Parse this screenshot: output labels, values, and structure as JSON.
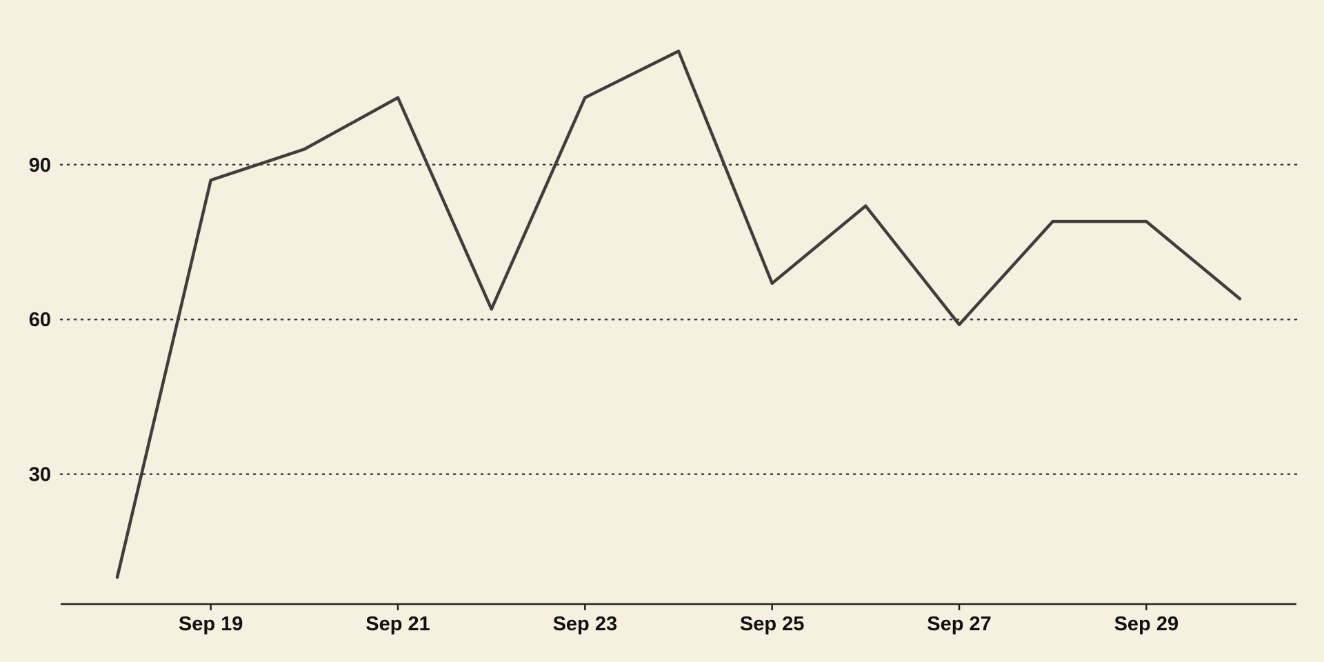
{
  "chart_data": {
    "type": "line",
    "title": "",
    "xlabel": "",
    "ylabel": "",
    "x": [
      "2024-09-18",
      "2024-09-19",
      "2024-09-20",
      "2024-09-21",
      "2024-09-22",
      "2024-09-23",
      "2024-09-24",
      "2024-09-25",
      "2024-09-26",
      "2024-09-27",
      "2024-09-28",
      "2024-09-29",
      "2024-09-30"
    ],
    "series": [
      {
        "values": [
          10,
          87,
          93,
          103,
          62,
          103,
          112,
          67,
          82,
          59,
          79,
          79,
          64
        ]
      }
    ],
    "x_ticks": [
      {
        "date": "2024-09-19",
        "label": "Sep 19"
      },
      {
        "date": "2024-09-21",
        "label": "Sep 21"
      },
      {
        "date": "2024-09-23",
        "label": "Sep 23"
      },
      {
        "date": "2024-09-25",
        "label": "Sep 25"
      },
      {
        "date": "2024-09-27",
        "label": "Sep 27"
      },
      {
        "date": "2024-09-29",
        "label": "Sep 29"
      }
    ],
    "y_ticks": [
      {
        "value": 30,
        "label": "30"
      },
      {
        "value": 60,
        "label": "60"
      },
      {
        "value": 90,
        "label": "90"
      }
    ],
    "xlim": [
      "2024-09-17",
      "2024-10-01"
    ],
    "ylim": [
      0,
      120
    ],
    "grid": "horizontal dotted",
    "colors": {
      "background": "#f6f0e0",
      "line": "#403d3b",
      "text": "#111111"
    }
  }
}
